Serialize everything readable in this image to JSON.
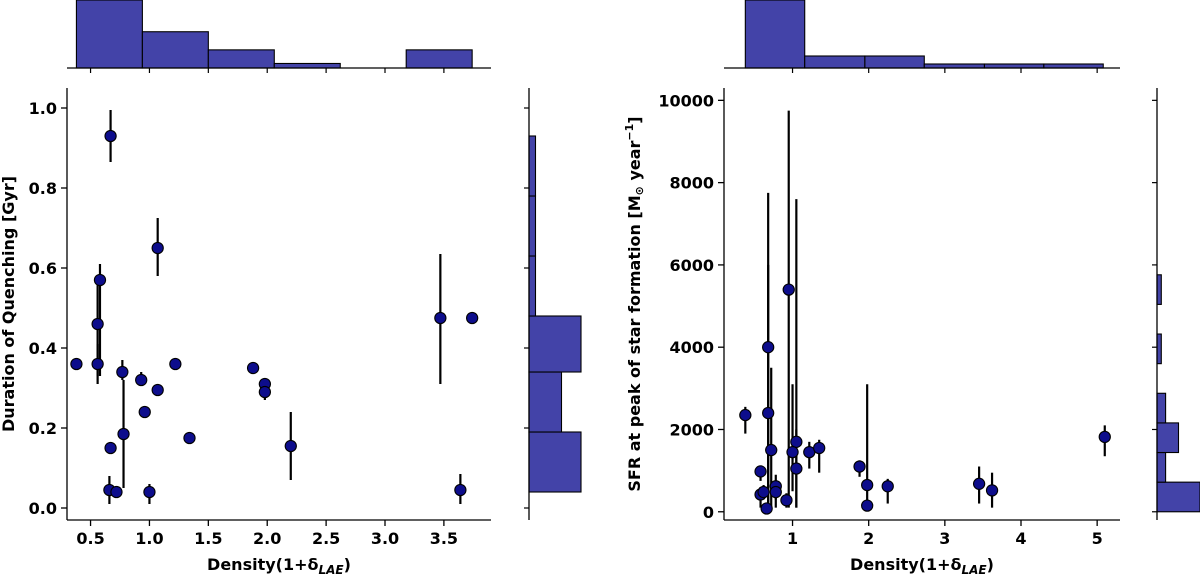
{
  "chart_data": [
    {
      "type": "scatter",
      "title": "",
      "xlabel": "Density(1+δ",
      "xlabel_sub": "LAE",
      "xlabel_close": ")",
      "ylabel": "Duration of Quenching [Gyr]",
      "xlim": [
        0.3,
        3.9
      ],
      "ylim": [
        -0.03,
        1.05
      ],
      "xticks": [
        0.5,
        1.0,
        1.5,
        2.0,
        2.5,
        3.0,
        3.5
      ],
      "xtick_labels": [
        "0.5",
        "1.0",
        "1.5",
        "2.0",
        "2.5",
        "3.0",
        "3.5"
      ],
      "yticks": [
        0.0,
        0.2,
        0.4,
        0.6,
        0.8,
        1.0
      ],
      "ytick_labels": [
        "0.0",
        "0.2",
        "0.4",
        "0.6",
        "0.8",
        "1.0"
      ],
      "points": [
        {
          "x": 0.67,
          "y": 0.93,
          "lo": 0.865,
          "hi": 0.995
        },
        {
          "x": 1.07,
          "y": 0.65,
          "lo": 0.58,
          "hi": 0.725
        },
        {
          "x": 0.58,
          "y": 0.57,
          "lo": 0.33,
          "hi": 0.61
        },
        {
          "x": 0.56,
          "y": 0.46,
          "lo": 0.33,
          "hi": 0.58
        },
        {
          "x": 0.56,
          "y": 0.36,
          "lo": 0.31,
          "hi": 0.41
        },
        {
          "x": 0.38,
          "y": 0.36,
          "lo": 0.36,
          "hi": 0.36
        },
        {
          "x": 0.77,
          "y": 0.34,
          "lo": 0.32,
          "hi": 0.37
        },
        {
          "x": 0.93,
          "y": 0.32,
          "lo": 0.31,
          "hi": 0.34
        },
        {
          "x": 1.07,
          "y": 0.295,
          "lo": 0.295,
          "hi": 0.295
        },
        {
          "x": 1.22,
          "y": 0.36,
          "lo": 0.36,
          "hi": 0.36
        },
        {
          "x": 0.96,
          "y": 0.24,
          "lo": 0.24,
          "hi": 0.24
        },
        {
          "x": 0.78,
          "y": 0.185,
          "lo": 0.05,
          "hi": 0.32
        },
        {
          "x": 0.67,
          "y": 0.15,
          "lo": 0.135,
          "hi": 0.165
        },
        {
          "x": 1.34,
          "y": 0.175,
          "lo": 0.175,
          "hi": 0.175
        },
        {
          "x": 1.88,
          "y": 0.35,
          "lo": 0.35,
          "hi": 0.35
        },
        {
          "x": 1.98,
          "y": 0.31,
          "lo": 0.29,
          "hi": 0.32
        },
        {
          "x": 1.98,
          "y": 0.29,
          "lo": 0.27,
          "hi": 0.3
        },
        {
          "x": 2.2,
          "y": 0.155,
          "lo": 0.07,
          "hi": 0.24
        },
        {
          "x": 0.66,
          "y": 0.045,
          "lo": 0.01,
          "hi": 0.08
        },
        {
          "x": 0.72,
          "y": 0.04,
          "lo": 0.04,
          "hi": 0.04
        },
        {
          "x": 1.0,
          "y": 0.04,
          "lo": 0.01,
          "hi": 0.06
        },
        {
          "x": 3.47,
          "y": 0.475,
          "lo": 0.31,
          "hi": 0.635
        },
        {
          "x": 3.74,
          "y": 0.475,
          "lo": 0.475,
          "hi": 0.475
        },
        {
          "x": 3.64,
          "y": 0.045,
          "lo": 0.01,
          "hi": 0.085
        }
      ],
      "marginal_x": {
        "edges": [
          0.38,
          0.94,
          1.5,
          2.06,
          2.62,
          3.18,
          3.74
        ],
        "counts": [
          15,
          8,
          4,
          1,
          0,
          4
        ]
      },
      "marginal_y": {
        "edges": [
          0.04,
          0.19,
          0.34,
          0.48,
          0.63,
          0.78,
          0.93
        ],
        "counts": [
          8,
          5,
          8,
          1,
          1,
          1
        ]
      },
      "colors": {
        "marker_fill": "#0d0d8c",
        "marker_edge": "#000000",
        "hist_fill": "#4343a8",
        "hist_edge": "#000000"
      }
    },
    {
      "type": "scatter",
      "title": "",
      "xlabel": "Density(1+δ",
      "xlabel_sub": "LAE",
      "xlabel_close": ")",
      "ylabel": "SFR at peak of star formation [M",
      "ylabel_sun": "⊙",
      "ylabel_unit": " year",
      "ylabel_sup": "−1",
      "ylabel_close": "]",
      "xlim": [
        0.1,
        5.3
      ],
      "ylim": [
        -200,
        10300
      ],
      "xticks": [
        1,
        2,
        3,
        4,
        5
      ],
      "xtick_labels": [
        "1",
        "2",
        "3",
        "4",
        "5"
      ],
      "yticks": [
        0,
        2000,
        4000,
        6000,
        8000,
        10000
      ],
      "ytick_labels": [
        "0",
        "2000",
        "4000",
        "6000",
        "8000",
        "10000"
      ],
      "points": [
        {
          "x": 0.38,
          "y": 2350,
          "lo": 1900,
          "hi": 2550
        },
        {
          "x": 0.95,
          "y": 5400,
          "lo": 100,
          "hi": 9750
        },
        {
          "x": 0.68,
          "y": 4000,
          "lo": 100,
          "hi": 7750
        },
        {
          "x": 0.68,
          "y": 2400,
          "lo": 100,
          "hi": 6000
        },
        {
          "x": 0.72,
          "y": 1500,
          "lo": 100,
          "hi": 3500
        },
        {
          "x": 1.05,
          "y": 1700,
          "lo": 100,
          "hi": 7600
        },
        {
          "x": 1.0,
          "y": 1450,
          "lo": 500,
          "hi": 3100
        },
        {
          "x": 1.05,
          "y": 1050,
          "lo": 100,
          "hi": 2000
        },
        {
          "x": 1.22,
          "y": 1450,
          "lo": 1050,
          "hi": 1700
        },
        {
          "x": 1.35,
          "y": 1550,
          "lo": 950,
          "hi": 1750
        },
        {
          "x": 0.58,
          "y": 980,
          "lo": 750,
          "hi": 1100
        },
        {
          "x": 0.58,
          "y": 420,
          "lo": 100,
          "hi": 600
        },
        {
          "x": 0.62,
          "y": 480,
          "lo": 300,
          "hi": 650
        },
        {
          "x": 0.78,
          "y": 620,
          "lo": 100,
          "hi": 900
        },
        {
          "x": 0.78,
          "y": 480,
          "lo": 300,
          "hi": 650
        },
        {
          "x": 0.92,
          "y": 280,
          "lo": 100,
          "hi": 450
        },
        {
          "x": 0.66,
          "y": 80,
          "lo": 0,
          "hi": 100
        },
        {
          "x": 1.88,
          "y": 1100,
          "lo": 850,
          "hi": 1250
        },
        {
          "x": 1.98,
          "y": 650,
          "lo": 100,
          "hi": 3100
        },
        {
          "x": 1.98,
          "y": 150,
          "lo": 50,
          "hi": 300
        },
        {
          "x": 2.25,
          "y": 620,
          "lo": 200,
          "hi": 800
        },
        {
          "x": 3.45,
          "y": 680,
          "lo": 200,
          "hi": 1100
        },
        {
          "x": 3.62,
          "y": 520,
          "lo": 100,
          "hi": 950
        },
        {
          "x": 5.1,
          "y": 1820,
          "lo": 1350,
          "hi": 2100
        }
      ],
      "marginal_x": {
        "edges": [
          0.38,
          1.16,
          1.95,
          2.73,
          3.52,
          4.3,
          5.08
        ],
        "counts": [
          17,
          3,
          3,
          1,
          1,
          1
        ]
      },
      "marginal_y": {
        "edges": [
          0,
          720,
          1440,
          2160,
          2880,
          3600,
          4320,
          5040,
          5760
        ],
        "counts": [
          10,
          2,
          5,
          2,
          0,
          1,
          0,
          1
        ]
      },
      "colors": {
        "marker_fill": "#0d0d8c",
        "marker_edge": "#000000",
        "hist_fill": "#4343a8",
        "hist_edge": "#000000"
      }
    }
  ]
}
